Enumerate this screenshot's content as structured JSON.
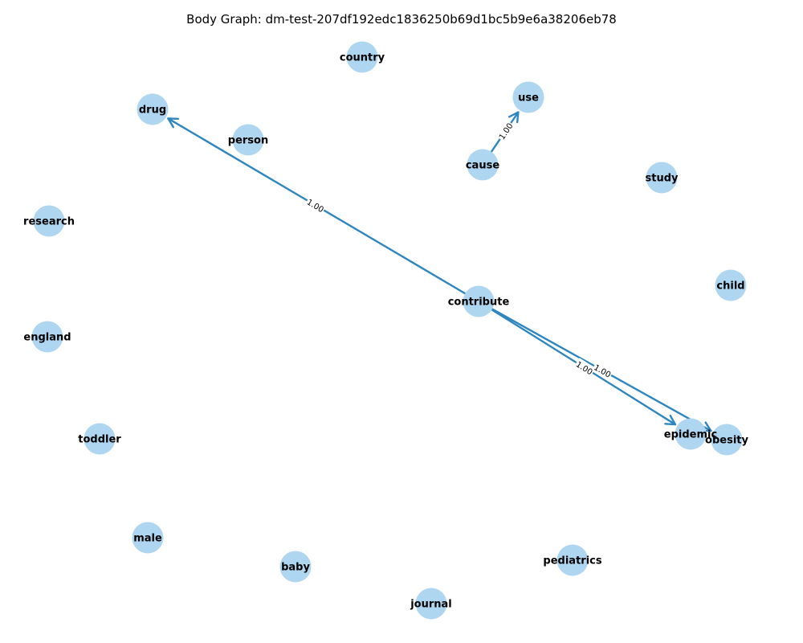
{
  "title": "Body Graph: dm-test-207df192edc1836250b69d1bc5b9e6a38206eb78",
  "colors": {
    "node_fill": "#aed6f1",
    "edge": "#2e86c1",
    "label": "#000000"
  },
  "nodes": [
    {
      "id": "country",
      "label": "country"
    },
    {
      "id": "drug",
      "label": "drug"
    },
    {
      "id": "use",
      "label": "use"
    },
    {
      "id": "person",
      "label": "person"
    },
    {
      "id": "cause",
      "label": "cause"
    },
    {
      "id": "study",
      "label": "study"
    },
    {
      "id": "research",
      "label": "research"
    },
    {
      "id": "child",
      "label": "child"
    },
    {
      "id": "contribute",
      "label": "contribute"
    },
    {
      "id": "england",
      "label": "england"
    },
    {
      "id": "epidemic",
      "label": "epidemic"
    },
    {
      "id": "obesity",
      "label": "obesity"
    },
    {
      "id": "toddler",
      "label": "toddler"
    },
    {
      "id": "male",
      "label": "male"
    },
    {
      "id": "baby",
      "label": "baby"
    },
    {
      "id": "pediatrics",
      "label": "pediatrics"
    },
    {
      "id": "journal",
      "label": "journal"
    }
  ],
  "edges": [
    {
      "source": "contribute",
      "target": "drug",
      "weight_label": "1.00"
    },
    {
      "source": "cause",
      "target": "use",
      "weight_label": "1.00"
    },
    {
      "source": "contribute",
      "target": "epidemic",
      "weight_label": "1.00"
    },
    {
      "source": "contribute",
      "target": "obesity",
      "weight_label": "1.00"
    }
  ]
}
